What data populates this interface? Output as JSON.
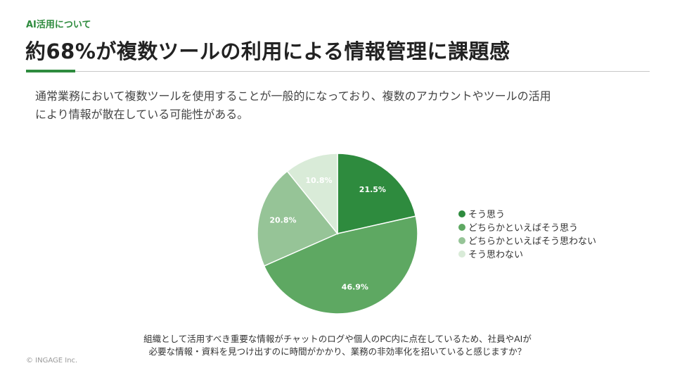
{
  "header": {
    "eyebrow": "AI活用について",
    "title": "約68%が複数ツールの利用による情報管理に課題感"
  },
  "lead": {
    "line1": "通常業務において複数ツールを使用することが一般的になっており、複数のアカウントやツールの活用",
    "line2": "により情報が散在している可能性がある。"
  },
  "question": {
    "line1": "組織として活用すべき重要な情報がチャットのログや個人のPC内に点在しているため、社員やAIが",
    "line2": "必要な情報・資料を見つけ出すのに時間がかかり、業務の非効率化を招いていると感じますか？"
  },
  "footer": {
    "copyright": "© INGAGE Inc."
  },
  "chart_data": {
    "type": "pie",
    "title": "",
    "legend_position": "right",
    "slices": [
      {
        "label": "そう思う",
        "value": 21.5,
        "display": "21.5%",
        "color": "#2e8b3e"
      },
      {
        "label": "どちらかといえばそう思う",
        "value": 46.9,
        "display": "46.9%",
        "color": "#5ea862"
      },
      {
        "label": "どちらかといえばそう思わない",
        "value": 20.8,
        "display": "20.8%",
        "color": "#96c497"
      },
      {
        "label": "そう思わない",
        "value": 10.8,
        "display": "10.8%",
        "color": "#d9ebd8"
      }
    ]
  }
}
